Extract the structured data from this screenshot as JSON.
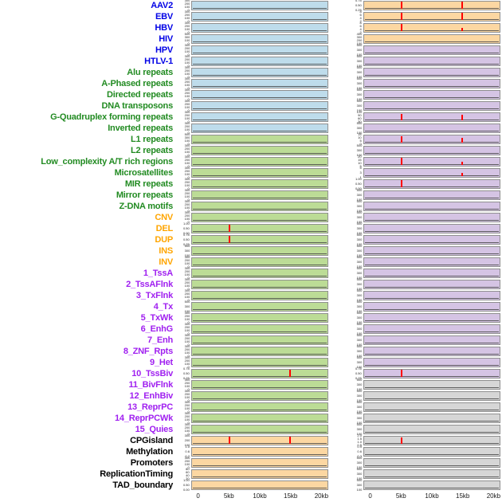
{
  "chart_data": {
    "type": "line",
    "layout": "small-multiples; 44 feature rows x 2 columns of signal panels around a 0-20kb window",
    "x_ticks": [
      "0",
      "5kb",
      "10kb",
      "15kb",
      "20kb"
    ],
    "x_tick_positions_pct": [
      5,
      27.5,
      50,
      72.5,
      95
    ],
    "spike_positions_pct": {
      "5kb": 27.5,
      "15kb": 72.5
    },
    "colors": {
      "label": {
        "virus": "#0000E6",
        "repeat": "#228B22",
        "sv": "#FFA500",
        "state": "#A020F0",
        "other": "#000000"
      },
      "panel": {
        "blue": "#BEDCEB",
        "green": "#BCDC96",
        "orange": "#FCD7A2",
        "purple": "#D5C4E4",
        "gray": "#D6D6D6"
      },
      "spike": "#FF0000",
      "trace": "#4A4A4A",
      "panel_border": "#8F8F8F"
    },
    "rows": [
      {
        "label": "AAV2",
        "group": "virus",
        "lfill": "blue",
        "lticks": [
          "300",
          "200",
          "100",
          "0"
        ],
        "lspikes": [],
        "rfill": "orange",
        "rticks": [
          "0.75",
          "0.50",
          "0.25"
        ],
        "rspikes": [
          [
            "5kb",
            1.0
          ],
          [
            "15kb",
            0.95
          ]
        ]
      },
      {
        "label": "EBV",
        "group": "virus",
        "lfill": "blue",
        "lticks": [
          "300",
          "200",
          "100",
          "0"
        ],
        "lspikes": [],
        "rfill": "orange",
        "rticks": [
          "8",
          "6",
          "4",
          "2"
        ],
        "rspikes": [
          [
            "5kb",
            0.9
          ],
          [
            "15kb",
            0.85
          ]
        ]
      },
      {
        "label": "HBV",
        "group": "virus",
        "lfill": "blue",
        "lticks": [
          "300",
          "200",
          "100",
          "0"
        ],
        "lspikes": [],
        "rfill": "orange",
        "rticks": [
          "8",
          "6",
          "4",
          "2"
        ],
        "rspikes": [
          [
            "5kb",
            1.0
          ],
          [
            "15kb",
            0.3
          ]
        ]
      },
      {
        "label": "HIV",
        "group": "virus",
        "lfill": "blue",
        "lticks": [
          "500",
          "300",
          "100",
          "0"
        ],
        "lspikes": [],
        "rfill": "orange",
        "rticks": [
          "400",
          "300",
          "200",
          "100"
        ],
        "rspikes": []
      },
      {
        "label": "HPV",
        "group": "virus",
        "lfill": "blue",
        "lticks": [
          "300",
          "200",
          "100",
          "0"
        ],
        "lspikes": [],
        "rfill": "purple",
        "rticks": [
          "500",
          "300",
          "100"
        ],
        "rspikes": []
      },
      {
        "label": "HTLV-1",
        "group": "virus",
        "lfill": "blue",
        "lticks": [
          "300",
          "200",
          "100",
          "0"
        ],
        "lspikes": [],
        "rfill": "purple",
        "rticks": [
          "500",
          "300",
          "100"
        ],
        "rspikes": []
      },
      {
        "label": "Alu repeats",
        "group": "repeat",
        "lfill": "blue",
        "lticks": [
          "300",
          "200",
          "100",
          "0"
        ],
        "lspikes": [],
        "rfill": "purple",
        "rticks": [
          "500",
          "300",
          "100"
        ],
        "rspikes": []
      },
      {
        "label": "A-Phased repeats",
        "group": "repeat",
        "lfill": "blue",
        "lticks": [
          "300",
          "200",
          "100",
          "0"
        ],
        "lspikes": [],
        "rfill": "purple",
        "rticks": [
          "500",
          "300",
          "100"
        ],
        "rspikes": []
      },
      {
        "label": "Directed repeats",
        "group": "repeat",
        "lfill": "blue",
        "lticks": [
          "300",
          "200",
          "100",
          "0"
        ],
        "lspikes": [],
        "rfill": "purple",
        "rticks": [
          "500",
          "300",
          "100"
        ],
        "rspikes": []
      },
      {
        "label": "DNA transposons",
        "group": "repeat",
        "lfill": "blue",
        "lticks": [
          "300",
          "200",
          "100",
          "0"
        ],
        "lspikes": [],
        "rfill": "purple",
        "rticks": [
          "500",
          "300",
          "100"
        ],
        "rspikes": []
      },
      {
        "label": "G-Quadruplex forming repeats",
        "group": "repeat",
        "lfill": "blue",
        "lticks": [
          "300",
          "200",
          "100",
          "0"
        ],
        "lspikes": [],
        "rfill": "purple",
        "rticks": [
          "120",
          "90",
          "60",
          "30"
        ],
        "rspikes": [
          [
            "5kb",
            0.75
          ],
          [
            "15kb",
            0.7
          ]
        ]
      },
      {
        "label": "Inverted repeats",
        "group": "repeat",
        "lfill": "blue",
        "lticks": [
          "300",
          "200",
          "100",
          "0"
        ],
        "lspikes": [],
        "rfill": "purple",
        "rticks": [
          "500",
          "300",
          "100"
        ],
        "rspikes": []
      },
      {
        "label": "L1 repeats",
        "group": "repeat",
        "lfill": "green",
        "lticks": [
          "500",
          "300",
          "100",
          "0"
        ],
        "lspikes": [],
        "rfill": "purple",
        "rticks": [
          "15",
          "10",
          "5",
          "0"
        ],
        "rspikes": [
          [
            "5kb",
            0.8
          ],
          [
            "15kb",
            0.5
          ]
        ]
      },
      {
        "label": "L2 repeats",
        "group": "repeat",
        "lfill": "green",
        "lticks": [
          "300",
          "200",
          "100",
          "0"
        ],
        "lspikes": [],
        "rfill": "purple",
        "rticks": [
          "500",
          "300",
          "100"
        ],
        "rspikes": []
      },
      {
        "label": "Low_complexity A/T rich regions",
        "group": "repeat",
        "lfill": "green",
        "lticks": [
          "300",
          "200",
          "100",
          "0"
        ],
        "lspikes": [],
        "rfill": "purple",
        "rticks": [
          "20",
          "15",
          "10",
          "5"
        ],
        "rspikes": [
          [
            "5kb",
            0.85
          ],
          [
            "15kb",
            0.3
          ]
        ]
      },
      {
        "label": "Microsatellites",
        "group": "repeat",
        "lfill": "green",
        "lticks": [
          "300",
          "200",
          "100",
          "0"
        ],
        "lspikes": [],
        "rfill": "purple",
        "rticks": [
          "5",
          "3",
          "1"
        ],
        "rspikes": [
          [
            "15kb",
            0.3
          ]
        ]
      },
      {
        "label": "MIR repeats",
        "group": "repeat",
        "lfill": "green",
        "lticks": [
          "300",
          "200",
          "100",
          "0"
        ],
        "lspikes": [],
        "rfill": "purple",
        "rticks": [
          "1.00",
          "0.50",
          "0.00"
        ],
        "rspikes": [
          [
            "5kb",
            0.85
          ]
        ]
      },
      {
        "label": "Mirror repeats",
        "group": "repeat",
        "lfill": "green",
        "lticks": [
          "300",
          "200",
          "100",
          "0"
        ],
        "lspikes": [],
        "rfill": "purple",
        "rticks": [
          "500",
          "300",
          "100"
        ],
        "rspikes": []
      },
      {
        "label": "Z-DNA motifs",
        "group": "repeat",
        "lfill": "green",
        "lticks": [
          "300",
          "200",
          "100",
          "0"
        ],
        "lspikes": [],
        "rfill": "purple",
        "rticks": [
          "500",
          "300",
          "100"
        ],
        "rspikes": []
      },
      {
        "label": "CNV",
        "group": "sv",
        "lfill": "green",
        "lticks": [
          "300",
          "200",
          "100",
          "0"
        ],
        "lspikes": [],
        "rfill": "purple",
        "rticks": [
          "500",
          "300",
          "100"
        ],
        "rspikes": []
      },
      {
        "label": "DEL",
        "group": "sv",
        "lfill": "green",
        "lticks": [
          "1.00",
          "0.50",
          "0.00"
        ],
        "lspikes": [
          [
            "5kb",
            0.95
          ]
        ],
        "rfill": "purple",
        "rticks": [
          "500",
          "300",
          "100"
        ],
        "rspikes": []
      },
      {
        "label": "DUP",
        "group": "sv",
        "lfill": "green",
        "lticks": [
          "0.75",
          "0.50",
          "0.25"
        ],
        "lspikes": [
          [
            "5kb",
            0.85
          ]
        ],
        "rfill": "purple",
        "rticks": [
          "500",
          "300",
          "100"
        ],
        "rspikes": []
      },
      {
        "label": "INS",
        "group": "sv",
        "lfill": "green",
        "lticks": [
          "500",
          "300",
          "100"
        ],
        "lspikes": [],
        "rfill": "purple",
        "rticks": [
          "500",
          "300",
          "100"
        ],
        "rspikes": []
      },
      {
        "label": "INV",
        "group": "sv",
        "lfill": "green",
        "lticks": [
          "300",
          "200",
          "100",
          "0"
        ],
        "lspikes": [],
        "rfill": "purple",
        "rticks": [
          "500",
          "300",
          "100"
        ],
        "rspikes": []
      },
      {
        "label": "1_TssA",
        "group": "state",
        "lfill": "green",
        "lticks": [
          "300",
          "200",
          "100",
          "0"
        ],
        "lspikes": [],
        "rfill": "purple",
        "rticks": [
          "500",
          "300",
          "100"
        ],
        "rspikes": []
      },
      {
        "label": "2_TssAFlnk",
        "group": "state",
        "lfill": "green",
        "lticks": [
          "300",
          "200",
          "100",
          "0"
        ],
        "lspikes": [],
        "rfill": "purple",
        "rticks": [
          "500",
          "300",
          "100"
        ],
        "rspikes": []
      },
      {
        "label": "3_TxFlnk",
        "group": "state",
        "lfill": "green",
        "lticks": [
          "300",
          "200",
          "100",
          "0"
        ],
        "lspikes": [],
        "rfill": "purple",
        "rticks": [
          "500",
          "300",
          "100"
        ],
        "rspikes": []
      },
      {
        "label": "4_Tx",
        "group": "state",
        "lfill": "green",
        "lticks": [
          "500",
          "300",
          "100"
        ],
        "lspikes": [],
        "rfill": "purple",
        "rticks": [
          "500",
          "300",
          "100"
        ],
        "rspikes": []
      },
      {
        "label": "5_TxWk",
        "group": "state",
        "lfill": "green",
        "lticks": [
          "300",
          "200",
          "100",
          "0"
        ],
        "lspikes": [],
        "rfill": "purple",
        "rticks": [
          "500",
          "300",
          "100"
        ],
        "rspikes": []
      },
      {
        "label": "6_EnhG",
        "group": "state",
        "lfill": "green",
        "lticks": [
          "300",
          "200",
          "100",
          "0"
        ],
        "lspikes": [],
        "rfill": "purple",
        "rticks": [
          "500",
          "300",
          "100"
        ],
        "rspikes": []
      },
      {
        "label": "7_Enh",
        "group": "state",
        "lfill": "green",
        "lticks": [
          "300",
          "200",
          "100",
          "0"
        ],
        "lspikes": [],
        "rfill": "purple",
        "rticks": [
          "500",
          "300",
          "100"
        ],
        "rspikes": []
      },
      {
        "label": "8_ZNF_Rpts",
        "group": "state",
        "lfill": "green",
        "lticks": [
          "300",
          "200",
          "100",
          "0"
        ],
        "lspikes": [],
        "rfill": "purple",
        "rticks": [
          "500",
          "300",
          "100"
        ],
        "rspikes": []
      },
      {
        "label": "9_Het",
        "group": "state",
        "lfill": "green",
        "lticks": [
          "300",
          "200",
          "100",
          "0"
        ],
        "lspikes": [],
        "rfill": "purple",
        "rticks": [
          "500",
          "300",
          "100"
        ],
        "rspikes": []
      },
      {
        "label": "10_TssBiv",
        "group": "state",
        "lfill": "green",
        "lticks": [
          "0.75",
          "0.50",
          "0.25"
        ],
        "lspikes": [
          [
            "15kb",
            0.9
          ]
        ],
        "rfill": "purple",
        "rticks": [
          "0.75",
          "0.50",
          "0.25"
        ],
        "rspikes": [
          [
            "5kb",
            0.9
          ]
        ]
      },
      {
        "label": "11_BivFlnk",
        "group": "state",
        "lfill": "green",
        "lticks": [
          "300",
          "200",
          "100",
          "0"
        ],
        "lspikes": [],
        "rfill": "gray",
        "rticks": [
          "500",
          "300",
          "100"
        ],
        "rspikes": []
      },
      {
        "label": "12_EnhBiv",
        "group": "state",
        "lfill": "green",
        "lticks": [
          "300",
          "200",
          "100",
          "0"
        ],
        "lspikes": [],
        "rfill": "gray",
        "rticks": [
          "500",
          "300",
          "100"
        ],
        "rspikes": []
      },
      {
        "label": "13_ReprPC",
        "group": "state",
        "lfill": "green",
        "lticks": [
          "300",
          "200",
          "100",
          "0"
        ],
        "lspikes": [],
        "rfill": "gray",
        "rticks": [
          "500",
          "300",
          "100"
        ],
        "rspikes": []
      },
      {
        "label": "14_ReprPCWk",
        "group": "state",
        "lfill": "green",
        "lticks": [
          "300",
          "200",
          "100",
          "0"
        ],
        "lspikes": [],
        "rfill": "gray",
        "rticks": [
          "500",
          "300",
          "100"
        ],
        "rspikes": []
      },
      {
        "label": "15_Quies",
        "group": "state",
        "lfill": "green",
        "lticks": [
          "300",
          "200",
          "100",
          "0"
        ],
        "lspikes": [],
        "rfill": "gray",
        "rticks": [
          "500",
          "300",
          "100"
        ],
        "rspikes": []
      },
      {
        "label": "CPGisland",
        "group": "other",
        "lfill": "orange",
        "lticks": [
          "300",
          "200",
          "100"
        ],
        "lspikes": [
          [
            "5kb",
            0.95
          ],
          [
            "15kb",
            0.9
          ]
        ],
        "rfill": "gray",
        "rticks": [
          "2.0",
          "1.5",
          "1.0",
          "0.5"
        ],
        "rspikes": [
          [
            "5kb",
            0.8
          ]
        ]
      },
      {
        "label": "Methylation",
        "group": "other",
        "lfill": "orange",
        "lticks": [
          "1.0",
          "0.6",
          "0.2"
        ],
        "lspikes": [],
        "rfill": "gray",
        "rticks": [
          "0.9",
          "0.6",
          "0.3"
        ],
        "rspikes": []
      },
      {
        "label": "Promoters",
        "group": "other",
        "lfill": "orange",
        "lticks": [
          "300",
          "200",
          "100",
          "0"
        ],
        "lspikes": [],
        "rfill": "gray",
        "rticks": [
          "500",
          "300",
          "100"
        ],
        "rspikes": []
      },
      {
        "label": "ReplicationTiming",
        "group": "other",
        "lfill": "orange",
        "lticks": [
          "80",
          "60",
          "40",
          "20"
        ],
        "lspikes": [],
        "rfill": "gray",
        "rticks": [
          "500",
          "300",
          "100"
        ],
        "rspikes": []
      },
      {
        "label": "TAD_boundary",
        "group": "other",
        "lfill": "orange",
        "lticks": [
          "1.00",
          "0.50",
          "0.00"
        ],
        "lspikes": [],
        "rfill": "gray",
        "rticks": [
          "500",
          "300",
          "100"
        ],
        "rspikes": []
      }
    ]
  }
}
